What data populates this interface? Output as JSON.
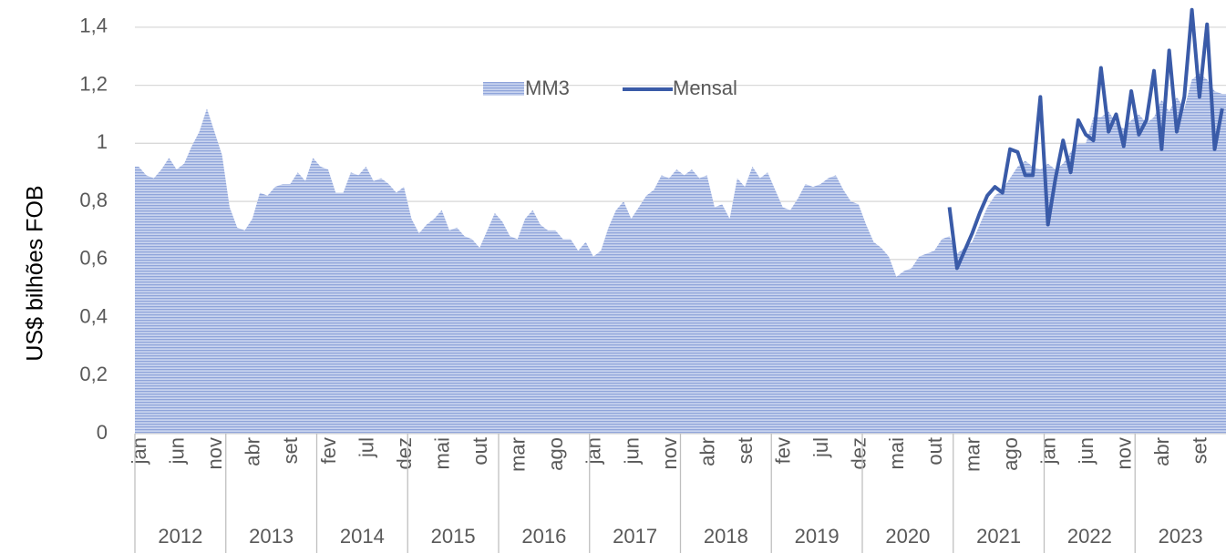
{
  "chart_data": {
    "type": "area-line",
    "y_label": "US$  bilhões FOB",
    "categories": [
      "jan",
      null,
      null,
      null,
      null,
      "jun",
      null,
      null,
      null,
      null,
      "nov",
      null,
      null,
      null,
      null,
      "abr",
      null,
      null,
      null,
      null,
      "set",
      null,
      null,
      null,
      null,
      "fev",
      null,
      null,
      null,
      null,
      "jul",
      null,
      null,
      null,
      null,
      "dez",
      null,
      null,
      null,
      null,
      "mai",
      null,
      null,
      null,
      null,
      "out",
      null,
      null,
      null,
      null,
      "mar",
      null,
      null,
      null,
      null,
      "ago",
      null,
      null,
      null,
      null,
      "jan",
      null,
      null,
      null,
      null,
      "jun",
      null,
      null,
      null,
      null,
      "nov",
      null,
      null,
      null,
      null,
      "abr",
      null,
      null,
      null,
      null,
      "set",
      null,
      null,
      null,
      null,
      "fev",
      null,
      null,
      null,
      null,
      "jul",
      null,
      null,
      null,
      null,
      "dez",
      null,
      null,
      null,
      null,
      "mai",
      null,
      null,
      null,
      null,
      "out",
      null,
      null,
      null,
      null,
      "mar",
      null,
      null,
      null,
      null,
      "ago",
      null,
      null,
      null,
      null,
      "jan",
      null,
      null,
      null,
      null,
      "jun",
      null,
      null,
      null,
      null,
      "nov",
      null,
      null,
      null,
      null,
      "abr",
      null,
      null,
      null,
      null,
      "set",
      null,
      null,
      null
    ],
    "years": [
      "2012",
      "2013",
      "2014",
      "2015",
      "2016",
      "2017",
      "2018",
      "2019",
      "2020",
      "2021",
      "2022",
      "2023"
    ],
    "series": [
      {
        "name": "MM3",
        "color": "#9fb2e0",
        "values": [
          0.92,
          0.89,
          0.88,
          0.91,
          0.95,
          0.91,
          0.93,
          0.99,
          1.04,
          1.12,
          1.04,
          0.96,
          0.78,
          0.71,
          0.7,
          0.74,
          0.83,
          0.82,
          0.85,
          0.86,
          0.86,
          0.9,
          0.87,
          0.95,
          0.92,
          0.91,
          0.83,
          0.83,
          0.9,
          0.89,
          0.92,
          0.87,
          0.88,
          0.86,
          0.83,
          0.85,
          0.74,
          0.69,
          0.72,
          0.74,
          0.77,
          0.7,
          0.71,
          0.68,
          0.67,
          0.64,
          0.7,
          0.76,
          0.73,
          0.68,
          0.67,
          0.74,
          0.77,
          0.72,
          0.7,
          0.7,
          0.67,
          0.67,
          0.63,
          0.66,
          0.61,
          0.63,
          0.71,
          0.77,
          0.8,
          0.74,
          0.78,
          0.82,
          0.84,
          0.89,
          0.88,
          0.91,
          0.89,
          0.91,
          0.88,
          0.89,
          0.78,
          0.79,
          0.74,
          0.88,
          0.85,
          0.92,
          0.88,
          0.9,
          0.84,
          0.78,
          0.77,
          0.81,
          0.86,
          0.85,
          0.86,
          0.88,
          0.89,
          0.84,
          0.8,
          0.79,
          0.72,
          0.66,
          0.64,
          0.61,
          0.54,
          0.56,
          0.57,
          0.61,
          0.62,
          0.63,
          0.67,
          0.68,
          0.62,
          0.64,
          0.66,
          0.72,
          0.78,
          0.82,
          0.84,
          0.88,
          0.92,
          0.94,
          0.92,
          0.91,
          0.93,
          0.91,
          0.93,
          0.97,
          1.0,
          1.0,
          1.09,
          1.09,
          1.11,
          1.07,
          1.05,
          1.08,
          1.1,
          1.07,
          1.09,
          1.15,
          1.11,
          1.16,
          1.12,
          1.22,
          1.24,
          1.22,
          1.18,
          1.17
        ]
      },
      {
        "name": "Mensal",
        "color": "#3a5ba8",
        "values": [
          null,
          null,
          null,
          null,
          null,
          null,
          null,
          null,
          null,
          null,
          null,
          null,
          null,
          null,
          null,
          null,
          null,
          null,
          null,
          null,
          null,
          null,
          null,
          null,
          null,
          null,
          null,
          null,
          null,
          null,
          null,
          null,
          null,
          null,
          null,
          null,
          null,
          null,
          null,
          null,
          null,
          null,
          null,
          null,
          null,
          null,
          null,
          null,
          null,
          null,
          null,
          null,
          null,
          null,
          null,
          null,
          null,
          null,
          null,
          null,
          null,
          null,
          null,
          null,
          null,
          null,
          null,
          null,
          null,
          null,
          null,
          null,
          null,
          null,
          null,
          null,
          null,
          null,
          null,
          null,
          null,
          null,
          null,
          null,
          null,
          null,
          null,
          null,
          null,
          null,
          null,
          null,
          null,
          null,
          null,
          null,
          null,
          null,
          null,
          null,
          null,
          null,
          null,
          null,
          null,
          null,
          null,
          0.78,
          0.57,
          0.63,
          0.69,
          0.76,
          0.82,
          0.85,
          0.83,
          0.98,
          0.97,
          0.89,
          0.89,
          1.16,
          0.72,
          0.88,
          1.01,
          0.9,
          1.08,
          1.03,
          1.01,
          1.26,
          1.04,
          1.1,
          0.99,
          1.18,
          1.03,
          1.08,
          1.25,
          0.98,
          1.32,
          1.04,
          1.16,
          1.46,
          1.16,
          1.41,
          0.98,
          1.12
        ]
      }
    ],
    "ylim": [
      0,
      1.5
    ],
    "yticks": [
      0,
      {
        "value": 0.2,
        "label": "0,2"
      },
      {
        "value": 0.4,
        "label": "0,4"
      },
      {
        "value": 0.6,
        "label": "0,6"
      },
      {
        "value": 0.8,
        "label": "0,8"
      },
      1,
      {
        "value": 1.2,
        "label": "1,2"
      },
      {
        "value": 1.4,
        "label": "1,4"
      }
    ],
    "grid": true
  }
}
